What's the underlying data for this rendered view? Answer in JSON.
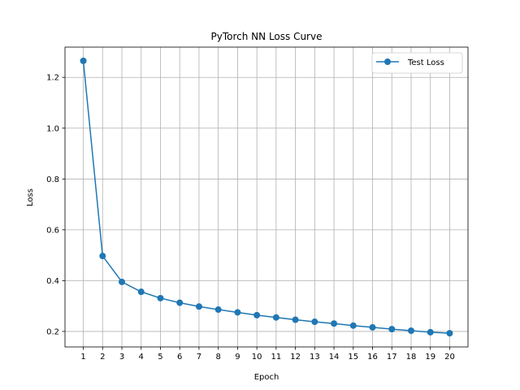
{
  "chart_data": {
    "type": "line",
    "title": "PyTorch NN Loss Curve",
    "xlabel": "Epoch",
    "ylabel": "Loss",
    "x": [
      1,
      2,
      3,
      4,
      5,
      6,
      7,
      8,
      9,
      10,
      11,
      12,
      13,
      14,
      15,
      16,
      17,
      18,
      19,
      20
    ],
    "series": [
      {
        "name": "Test Loss",
        "color": "#1f77b4",
        "marker": "circle",
        "values": [
          1.265,
          0.497,
          0.395,
          0.356,
          0.331,
          0.313,
          0.298,
          0.286,
          0.275,
          0.264,
          0.255,
          0.246,
          0.238,
          0.231,
          0.223,
          0.216,
          0.209,
          0.203,
          0.197,
          0.193
        ]
      }
    ],
    "xticks": [
      "1",
      "2",
      "3",
      "4",
      "5",
      "6",
      "7",
      "8",
      "9",
      "10",
      "11",
      "12",
      "13",
      "14",
      "15",
      "16",
      "17",
      "18",
      "19",
      "20"
    ],
    "yticks": [
      "0.2",
      "0.4",
      "0.6",
      "0.8",
      "1.0",
      "1.2"
    ],
    "ytick_values": [
      0.2,
      0.4,
      0.6,
      0.8,
      1.0,
      1.2
    ],
    "xlim": [
      0.05,
      20.95
    ],
    "ylim": [
      0.139,
      1.319
    ],
    "grid": true,
    "legend_position": "top-right"
  }
}
